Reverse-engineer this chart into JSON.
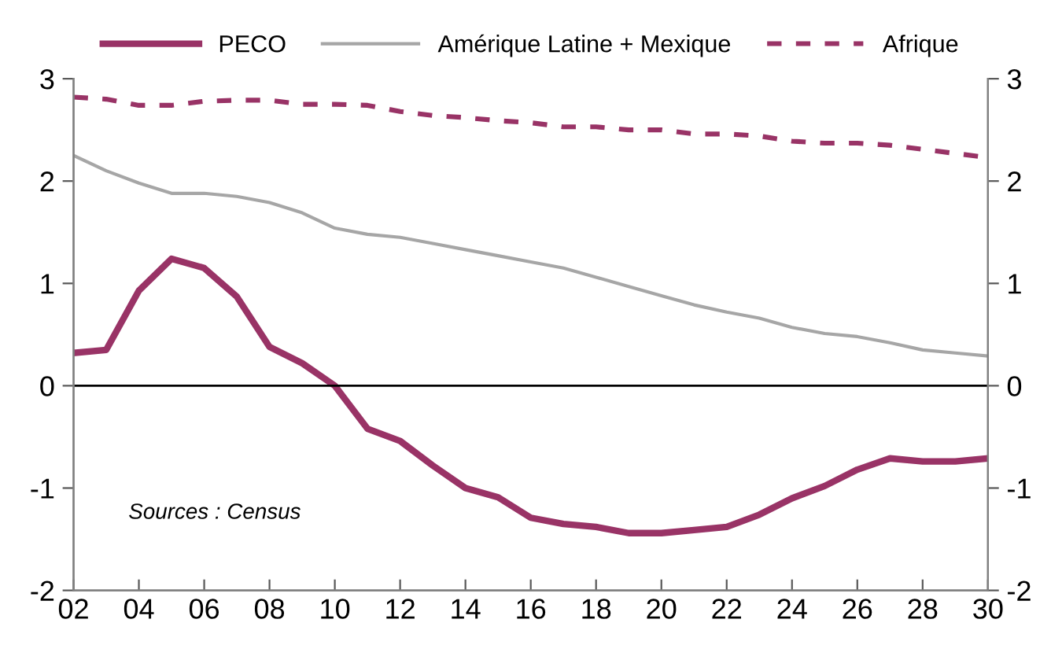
{
  "chart_data": {
    "type": "line",
    "x": [
      2002,
      2003,
      2004,
      2005,
      2006,
      2007,
      2008,
      2009,
      2010,
      2011,
      2012,
      2013,
      2014,
      2015,
      2016,
      2017,
      2018,
      2019,
      2020,
      2021,
      2022,
      2023,
      2024,
      2025,
      2026,
      2027,
      2028,
      2029,
      2030
    ],
    "series": [
      {
        "name": "PECO",
        "color": "#993366",
        "line_style": "solid",
        "values": [
          0.32,
          0.35,
          0.93,
          1.24,
          1.15,
          0.87,
          0.38,
          0.22,
          0.0,
          -0.42,
          -0.54,
          -0.78,
          -1.0,
          -1.09,
          -1.29,
          -1.35,
          -1.38,
          -1.44,
          -1.44,
          -1.41,
          -1.38,
          -1.26,
          -1.1,
          -0.98,
          -0.82,
          -0.71,
          -0.74,
          -0.74,
          -0.71
        ]
      },
      {
        "name": "Amérique Latine + Mexique",
        "color": "#a6a6a6",
        "line_style": "solid",
        "values": [
          2.25,
          2.1,
          1.98,
          1.88,
          1.88,
          1.85,
          1.79,
          1.69,
          1.54,
          1.48,
          1.45,
          1.39,
          1.33,
          1.27,
          1.21,
          1.15,
          1.06,
          0.97,
          0.88,
          0.79,
          0.72,
          0.66,
          0.57,
          0.51,
          0.48,
          0.42,
          0.35,
          0.32,
          0.29
        ]
      },
      {
        "name": "Afrique",
        "color": "#993366",
        "line_style": "dashed",
        "values": [
          2.82,
          2.8,
          2.74,
          2.74,
          2.78,
          2.79,
          2.79,
          2.75,
          2.75,
          2.74,
          2.68,
          2.64,
          2.62,
          2.59,
          2.57,
          2.53,
          2.53,
          2.5,
          2.5,
          2.46,
          2.46,
          2.44,
          2.39,
          2.37,
          2.37,
          2.35,
          2.31,
          2.27,
          2.23
        ]
      }
    ],
    "xlim": [
      2002,
      2030
    ],
    "xticks": [
      {
        "value": 2002,
        "label": "02"
      },
      {
        "value": 2004,
        "label": "04"
      },
      {
        "value": 2006,
        "label": "06"
      },
      {
        "value": 2008,
        "label": "08"
      },
      {
        "value": 2010,
        "label": "10"
      },
      {
        "value": 2012,
        "label": "12"
      },
      {
        "value": 2014,
        "label": "14"
      },
      {
        "value": 2016,
        "label": "16"
      },
      {
        "value": 2018,
        "label": "18"
      },
      {
        "value": 2020,
        "label": "20"
      },
      {
        "value": 2022,
        "label": "22"
      },
      {
        "value": 2024,
        "label": "24"
      },
      {
        "value": 2026,
        "label": "26"
      },
      {
        "value": 2028,
        "label": "28"
      },
      {
        "value": 2030,
        "label": "30"
      }
    ],
    "ylim": [
      -2,
      3
    ],
    "yticks": [
      -2,
      -1,
      0,
      1,
      2,
      3
    ],
    "y2lim": [
      -2,
      3
    ],
    "y2ticks": [
      -2,
      -1,
      0,
      1,
      2,
      3
    ],
    "ref_lines": [
      {
        "axis": "y",
        "value": 0,
        "color": "#000000"
      }
    ],
    "annotations": [
      "Sources : Census"
    ],
    "legend": "top",
    "grid": false,
    "marker": "none"
  }
}
